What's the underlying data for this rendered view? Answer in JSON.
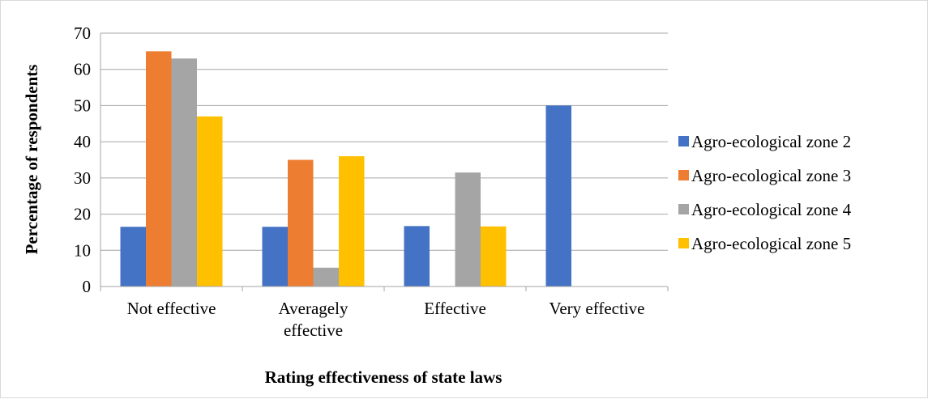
{
  "chart_data": {
    "type": "bar",
    "title": "",
    "xlabel": "Rating effectiveness of state laws",
    "ylabel": "Percentage of respondents",
    "categories": [
      [
        "Not effective"
      ],
      [
        "Averagely",
        "effective"
      ],
      [
        "Effective"
      ],
      [
        "Very effective"
      ]
    ],
    "series": [
      {
        "name": "Agro-ecological zone 2",
        "color": "#4472C4",
        "values": [
          16.5,
          16.5,
          16.7,
          50
        ]
      },
      {
        "name": "Agro-ecological zone 3",
        "color": "#ED7D31",
        "values": [
          65,
          35,
          0,
          0
        ]
      },
      {
        "name": "Agro-ecological zone 4",
        "color": "#A5A5A5",
        "values": [
          63,
          5.2,
          31.5,
          0
        ]
      },
      {
        "name": "Agro-ecological zone 5",
        "color": "#FFC000",
        "values": [
          47,
          36,
          16.6,
          0
        ]
      }
    ],
    "ylim": [
      0,
      70
    ],
    "yticks": [
      0,
      10,
      20,
      30,
      40,
      50,
      60,
      70
    ],
    "grid": true,
    "gridColor": "#A6A6A6",
    "legend_position": "right"
  }
}
